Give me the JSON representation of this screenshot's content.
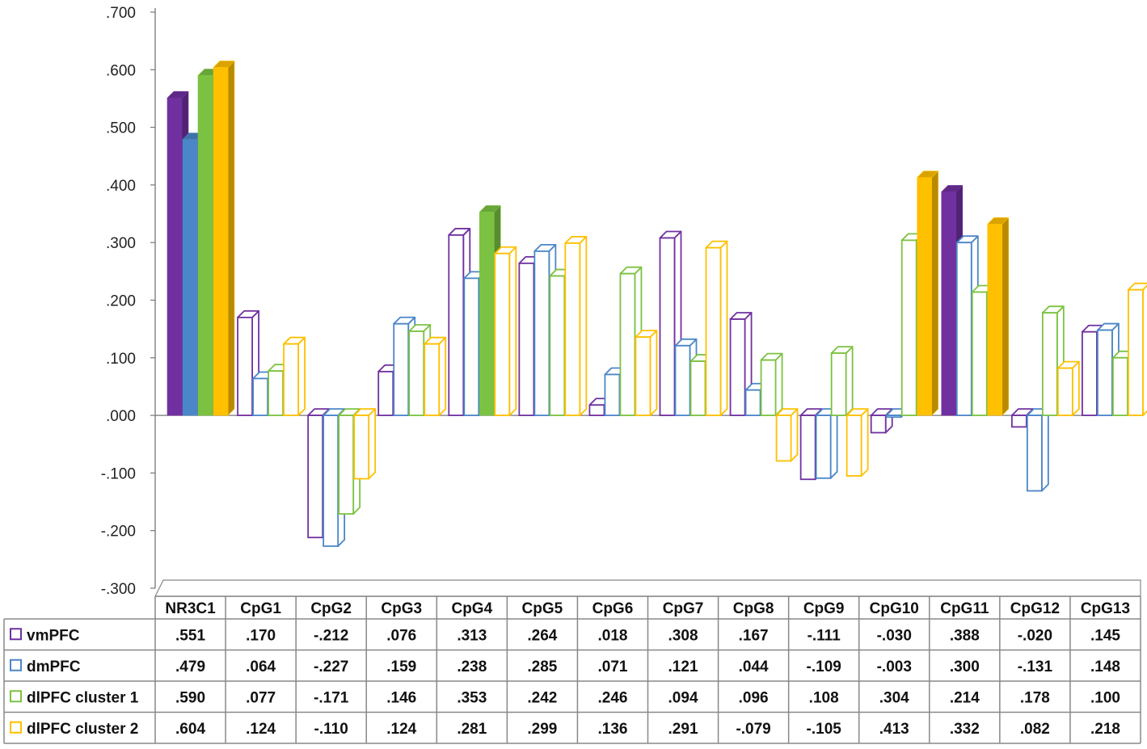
{
  "chart_data": {
    "type": "bar",
    "categories": [
      "NR3C1",
      "CpG1",
      "CpG2",
      "CpG3",
      "CpG4",
      "CpG5",
      "CpG6",
      "CpG7",
      "CpG8",
      "CpG9",
      "CpG10",
      "CpG11",
      "CpG12",
      "CpG13"
    ],
    "ylim": [
      -0.3,
      0.7
    ],
    "yticks": [
      ".700",
      ".600",
      ".500",
      ".400",
      ".300",
      ".200",
      ".100",
      ".000",
      "-.100",
      "-.200",
      "-.300"
    ],
    "ytick_values": [
      0.7,
      0.6,
      0.5,
      0.4,
      0.3,
      0.2,
      0.1,
      0.0,
      -0.1,
      -0.2,
      -0.3
    ],
    "grid": false,
    "legend_position": "table-left",
    "bar_style": "3d; solid fill when significant, outline otherwise",
    "series": [
      {
        "name": "vmPFC",
        "color": "#7030A0",
        "values": [
          0.551,
          0.17,
          -0.212,
          0.076,
          0.313,
          0.264,
          0.018,
          0.308,
          0.167,
          -0.111,
          -0.03,
          0.388,
          -0.02,
          0.145
        ],
        "labels": [
          ".551",
          ".170",
          "-.212",
          ".076",
          ".313",
          ".264",
          ".018",
          ".308",
          ".167",
          "-.111",
          "-.030",
          ".388",
          "-.020",
          ".145"
        ],
        "filled": [
          true,
          false,
          false,
          false,
          false,
          false,
          false,
          false,
          false,
          false,
          false,
          true,
          false,
          false
        ]
      },
      {
        "name": "dmPFC",
        "color": "#4A86C8",
        "values": [
          0.479,
          0.064,
          -0.227,
          0.159,
          0.238,
          0.285,
          0.071,
          0.121,
          0.044,
          -0.109,
          -0.003,
          0.3,
          -0.131,
          0.148
        ],
        "labels": [
          ".479",
          ".064",
          "-.227",
          ".159",
          ".238",
          ".285",
          ".071",
          ".121",
          ".044",
          "-.109",
          "-.003",
          ".300",
          "-.131",
          ".148"
        ],
        "filled": [
          true,
          false,
          false,
          false,
          false,
          false,
          false,
          false,
          false,
          false,
          false,
          false,
          false,
          false
        ]
      },
      {
        "name": "dlPFC cluster 1",
        "color": "#7CC242",
        "values": [
          0.59,
          0.077,
          -0.171,
          0.146,
          0.353,
          0.242,
          0.246,
          0.094,
          0.096,
          0.108,
          0.304,
          0.214,
          0.178,
          0.1
        ],
        "labels": [
          ".590",
          ".077",
          "-.171",
          ".146",
          ".353",
          ".242",
          ".246",
          ".094",
          ".096",
          ".108",
          ".304",
          ".214",
          ".178",
          ".100"
        ],
        "filled": [
          true,
          false,
          false,
          false,
          true,
          false,
          false,
          false,
          false,
          false,
          false,
          false,
          false,
          false
        ]
      },
      {
        "name": "dlPFC cluster 2",
        "color": "#FFC000",
        "values": [
          0.604,
          0.124,
          -0.11,
          0.124,
          0.281,
          0.299,
          0.136,
          0.291,
          -0.079,
          -0.105,
          0.413,
          0.332,
          0.082,
          0.218
        ],
        "labels": [
          ".604",
          ".124",
          "-.110",
          ".124",
          ".281",
          ".299",
          ".136",
          ".291",
          "-.079",
          "-.105",
          ".413",
          ".332",
          ".082",
          ".218"
        ],
        "filled": [
          true,
          false,
          false,
          false,
          false,
          false,
          false,
          false,
          false,
          false,
          true,
          true,
          false,
          false
        ]
      }
    ]
  }
}
